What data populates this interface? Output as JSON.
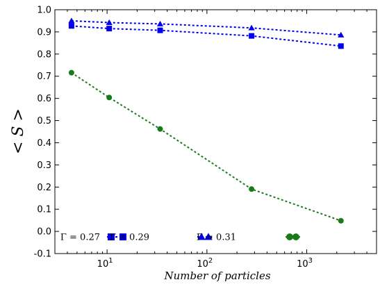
{
  "chart_data": {
    "type": "line",
    "xlabel": "Number of particles",
    "ylabel": "< S >",
    "xscale": "log",
    "xlim": [
      3,
      5000
    ],
    "ylim": [
      -0.1,
      1.0
    ],
    "x_ticks": [
      {
        "value": 10,
        "base": "10",
        "exp": "1"
      },
      {
        "value": 100,
        "base": "10",
        "exp": "2"
      },
      {
        "value": 1000,
        "base": "10",
        "exp": "3"
      }
    ],
    "y_ticks": [
      "-0.1",
      "0.0",
      "0.1",
      "0.2",
      "0.3",
      "0.4",
      "0.5",
      "0.6",
      "0.7",
      "0.8",
      "0.9",
      "1.0"
    ],
    "grid": false,
    "legend_position": "bottom",
    "x": [
      4.4,
      10.5,
      34,
      280,
      2200
    ],
    "series": [
      {
        "name": "Γ = 0.27",
        "color": "#0000ee",
        "marker": "square",
        "values": [
          0.927,
          0.915,
          0.907,
          0.882,
          0.836
        ]
      },
      {
        "name": "Γ = 0.29",
        "color": "#0000ee",
        "marker": "triangle",
        "values": [
          0.95,
          0.942,
          0.936,
          0.918,
          0.886
        ]
      },
      {
        "name": "Γ = 0.31",
        "color": "#1a7a1a",
        "marker": "circle",
        "values": [
          0.716,
          0.604,
          0.462,
          0.191,
          0.048
        ]
      }
    ]
  }
}
